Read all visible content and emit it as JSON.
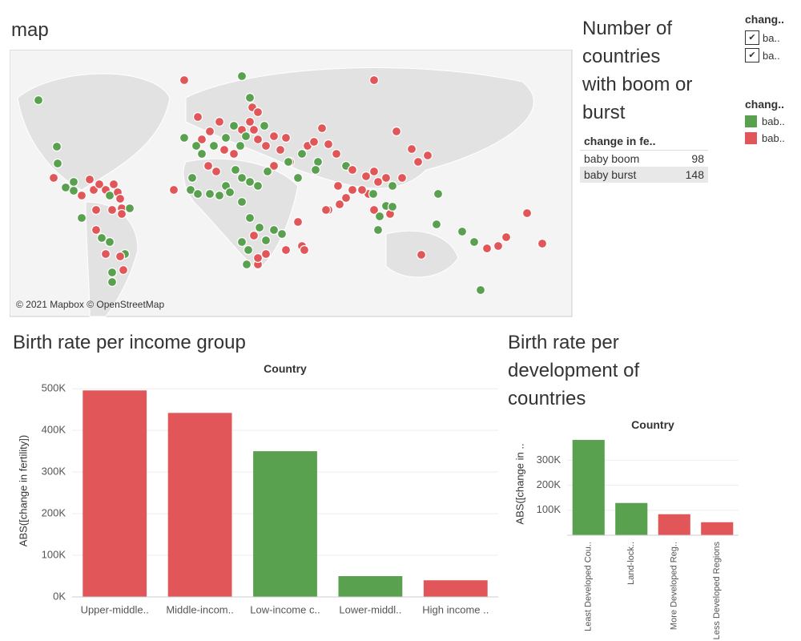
{
  "map": {
    "title": "map",
    "attribution": "© 2021 Mapbox © OpenStreetMap"
  },
  "summary": {
    "title": "Number of countries with boom or burst",
    "header": "change in fe..",
    "rows": [
      [
        "baby boom",
        98
      ],
      [
        "baby burst",
        148
      ]
    ]
  },
  "filter": {
    "title": "chang..",
    "items": [
      "ba..",
      "ba.."
    ]
  },
  "legend": {
    "title": "chang..",
    "items": [
      {
        "label": "bab..",
        "color": "#59a14f"
      },
      {
        "label": "bab..",
        "color": "#e15759"
      }
    ]
  },
  "chart_data": [
    {
      "type": "bar",
      "title": "Birth rate per income group",
      "x_label": "Country",
      "y_label": "ABS([change in fertility])",
      "categories": [
        "Upper-middle..",
        "Middle-incom..",
        "Low-income c..",
        "Lower-middl..",
        "High income .."
      ],
      "values": [
        496000,
        442000,
        350000,
        50000,
        40000
      ],
      "colors": [
        "#e15759",
        "#e15759",
        "#59a14f",
        "#59a14f",
        "#e15759"
      ],
      "ylim": [
        0,
        510000
      ],
      "yticks": [
        {
          "value": 0,
          "label": "0K"
        },
        {
          "value": 100000,
          "label": "100K"
        },
        {
          "value": 200000,
          "label": "200K"
        },
        {
          "value": 300000,
          "label": "300K"
        },
        {
          "value": 400000,
          "label": "400K"
        },
        {
          "value": 500000,
          "label": "500K"
        }
      ],
      "grid": true
    },
    {
      "type": "bar",
      "title": "Birth rate per development of countries",
      "x_label": "Country",
      "y_label": "ABS([change in ..",
      "categories": [
        "Least Developed Cou..",
        "Land-lock..",
        "More Developed Reg..",
        "Less Developed Regions"
      ],
      "values": [
        381000,
        129000,
        84000,
        52000
      ],
      "colors": [
        "#59a14f",
        "#59a14f",
        "#e15759",
        "#e15759"
      ],
      "ylim": [
        0,
        410000
      ],
      "yticks": [
        {
          "value": 100000,
          "label": "100K"
        },
        {
          "value": 200000,
          "label": "200K"
        },
        {
          "value": 300000,
          "label": "300K"
        }
      ],
      "grid": true
    }
  ]
}
